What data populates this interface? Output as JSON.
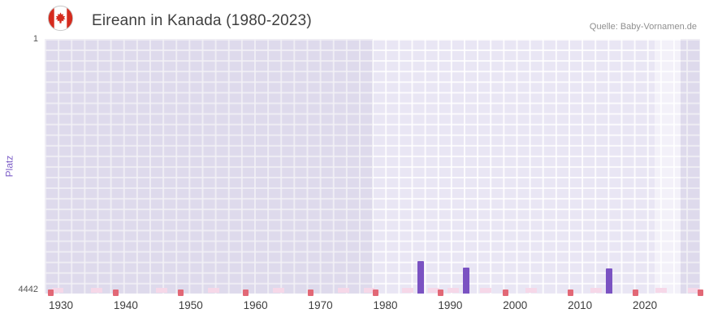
{
  "header": {
    "title": "Eireann in Kanada (1980-2023)",
    "source": "Quelle: Baby-Vornamen.de",
    "flag_icon": "canada-flag-icon"
  },
  "chart_data": {
    "type": "bar",
    "title": "Eireann in Kanada (1980-2023)",
    "xlabel": "",
    "ylabel": "Platz",
    "y_axis": {
      "min": 1,
      "max": 4442,
      "inverted": true,
      "tick_top": "1",
      "tick_bottom": "4442"
    },
    "x_axis": {
      "range": [
        1927.5,
        2028.5
      ],
      "ticks": [
        "1930",
        "1940",
        "1950",
        "1960",
        "1970",
        "1980",
        "1990",
        "2000",
        "2010",
        "2020"
      ]
    },
    "bars": [
      {
        "year": 1985,
        "rank": 3875
      },
      {
        "year": 1992,
        "rank": 3990
      },
      {
        "year": 2014,
        "rank": 4005
      }
    ],
    "unranked_marker_years": [
      1928,
      1938,
      1948,
      1958,
      1968,
      1978,
      1988,
      1998,
      2008,
      2018,
      2028
    ],
    "faint_marker_years": [
      1929,
      1935,
      1945,
      1953,
      1963,
      1973,
      1977,
      1983,
      1987,
      1990,
      1995,
      2002,
      2012,
      2022,
      2027
    ],
    "shading": {
      "dim_regions": [
        [
          1927.5,
          1978
        ],
        [
          2025.5,
          2028.5
        ]
      ],
      "bright_region": [
        2021.5,
        2025.5
      ]
    },
    "colors": {
      "bar": "#7a52c2",
      "unranked_marker": "#e26876",
      "faint_marker": "#f6d8e8",
      "plot_background": "#e9e6f4",
      "grid": "#ffffff",
      "axis_label": "#7e5fc8"
    },
    "legend": "none",
    "grid": "on"
  }
}
